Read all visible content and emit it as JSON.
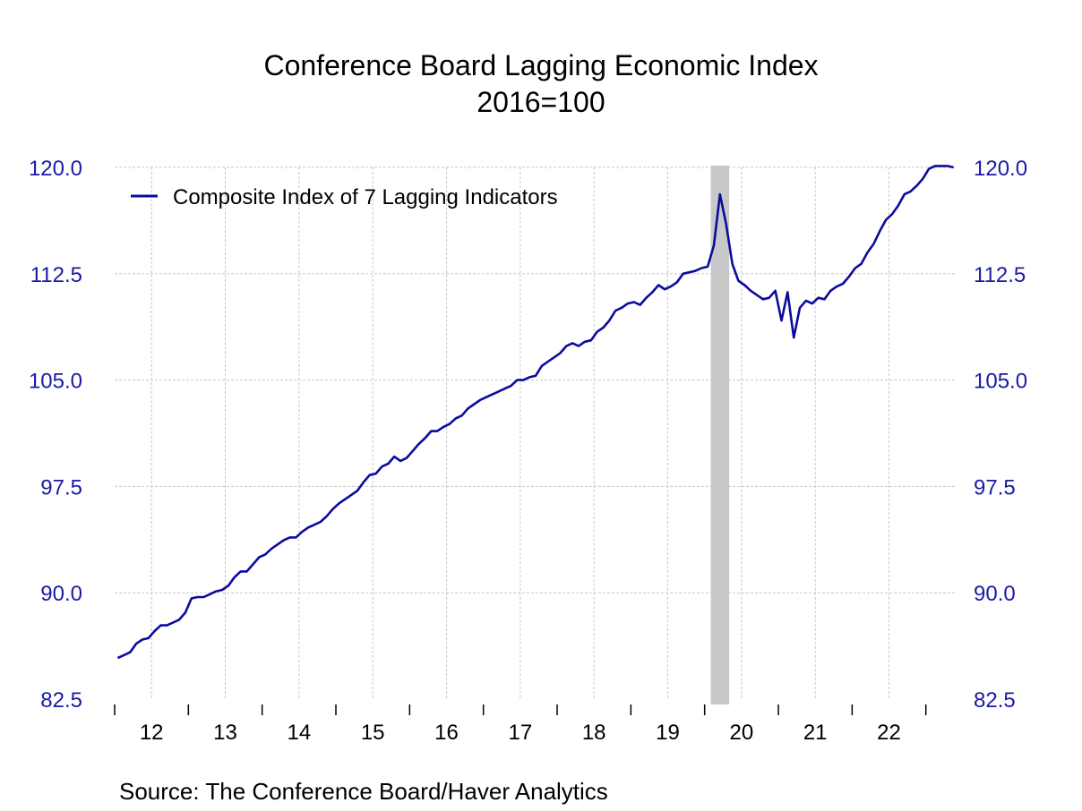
{
  "chart_data": {
    "type": "line",
    "title": "Conference Board Lagging Economic Index",
    "subtitle": "2016=100",
    "source": "Source:  The Conference Board/Haver Analytics",
    "colors": {
      "series": "#0b0b9e",
      "axis_labels": "#1a1aa6",
      "recession": "#c8c8c8",
      "grid": "#c8c8c8"
    },
    "grid": true,
    "legend_position": "top-left",
    "y_axis_left": true,
    "y_axis_right": true,
    "ylim": [
      82.5,
      120.0
    ],
    "y_ticks": [
      82.5,
      90.0,
      97.5,
      105.0,
      112.5,
      120.0
    ],
    "y_tick_labels": [
      "82.5",
      "90.0",
      "97.5",
      "105.0",
      "112.5",
      "120.0"
    ],
    "xlim": [
      "2012-01",
      "2023-05"
    ],
    "x_tick_labels": [
      "12",
      "13",
      "14",
      "15",
      "16",
      "17",
      "18",
      "19",
      "20",
      "21",
      "22"
    ],
    "x_tick_years": [
      2012,
      2013,
      2014,
      2015,
      2016,
      2017,
      2018,
      2019,
      2020,
      2021,
      2022
    ],
    "recession_shading": [
      {
        "start": "2020-02",
        "end": "2020-04"
      }
    ],
    "series": [
      {
        "name": "Composite Index of 7 Lagging Indicators",
        "x": [
          "2012-01",
          "2012-02",
          "2012-03",
          "2012-04",
          "2012-05",
          "2012-06",
          "2012-07",
          "2012-08",
          "2012-09",
          "2012-10",
          "2012-11",
          "2012-12",
          "2013-01",
          "2013-02",
          "2013-03",
          "2013-04",
          "2013-05",
          "2013-06",
          "2013-07",
          "2013-08",
          "2013-09",
          "2013-10",
          "2013-11",
          "2013-12",
          "2014-01",
          "2014-02",
          "2014-03",
          "2014-04",
          "2014-05",
          "2014-06",
          "2014-07",
          "2014-08",
          "2014-09",
          "2014-10",
          "2014-11",
          "2014-12",
          "2015-01",
          "2015-02",
          "2015-03",
          "2015-04",
          "2015-05",
          "2015-06",
          "2015-07",
          "2015-08",
          "2015-09",
          "2015-10",
          "2015-11",
          "2015-12",
          "2016-01",
          "2016-02",
          "2016-03",
          "2016-04",
          "2016-05",
          "2016-06",
          "2016-07",
          "2016-08",
          "2016-09",
          "2016-10",
          "2016-11",
          "2016-12",
          "2017-01",
          "2017-02",
          "2017-03",
          "2017-04",
          "2017-05",
          "2017-06",
          "2017-07",
          "2017-08",
          "2017-09",
          "2017-10",
          "2017-11",
          "2017-12",
          "2018-01",
          "2018-02",
          "2018-03",
          "2018-04",
          "2018-05",
          "2018-06",
          "2018-07",
          "2018-08",
          "2018-09",
          "2018-10",
          "2018-11",
          "2018-12",
          "2019-01",
          "2019-02",
          "2019-03",
          "2019-04",
          "2019-05",
          "2019-06",
          "2019-07",
          "2019-08",
          "2019-09",
          "2019-10",
          "2019-11",
          "2019-12",
          "2020-01",
          "2020-02",
          "2020-03",
          "2020-04",
          "2020-05",
          "2020-06",
          "2020-07",
          "2020-08",
          "2020-09",
          "2020-10",
          "2020-11",
          "2020-12",
          "2021-01",
          "2021-02",
          "2021-03",
          "2021-04",
          "2021-05",
          "2021-06",
          "2021-07",
          "2021-08",
          "2021-09",
          "2021-10",
          "2021-11",
          "2021-12",
          "2022-01",
          "2022-02",
          "2022-03",
          "2022-04",
          "2022-05",
          "2022-06",
          "2022-07",
          "2022-08",
          "2022-09",
          "2022-10",
          "2022-11",
          "2022-12",
          "2023-01",
          "2023-02",
          "2023-03",
          "2023-04",
          "2023-05"
        ],
        "values": [
          85.4,
          85.6,
          85.8,
          86.4,
          86.7,
          86.8,
          87.3,
          87.7,
          87.7,
          87.9,
          88.1,
          88.6,
          89.6,
          89.7,
          89.7,
          89.9,
          90.1,
          90.2,
          90.5,
          91.1,
          91.5,
          91.5,
          92.0,
          92.5,
          92.7,
          93.1,
          93.4,
          93.7,
          93.9,
          93.9,
          94.3,
          94.6,
          94.8,
          95.0,
          95.4,
          95.9,
          96.3,
          96.6,
          96.9,
          97.2,
          97.8,
          98.3,
          98.4,
          98.9,
          99.1,
          99.6,
          99.3,
          99.5,
          100.0,
          100.5,
          100.9,
          101.4,
          101.4,
          101.7,
          101.9,
          102.3,
          102.5,
          103.0,
          103.3,
          103.6,
          103.8,
          104.0,
          104.2,
          104.4,
          104.6,
          105.0,
          105.0,
          105.2,
          105.3,
          106.0,
          106.3,
          106.6,
          106.9,
          107.4,
          107.6,
          107.4,
          107.7,
          107.8,
          108.4,
          108.7,
          109.2,
          109.9,
          110.1,
          110.4,
          110.5,
          110.3,
          110.8,
          111.2,
          111.7,
          111.4,
          111.6,
          111.9,
          112.5,
          112.6,
          112.7,
          112.9,
          113.0,
          114.5,
          118.1,
          116.0,
          113.2,
          112.0,
          111.7,
          111.3,
          111.0,
          110.7,
          110.8,
          111.3,
          109.2,
          111.2,
          108.0,
          110.1,
          110.6,
          110.4,
          110.8,
          110.7,
          111.3,
          111.6,
          111.8,
          112.3,
          112.9,
          113.2,
          114.0,
          114.6,
          115.5,
          116.3,
          116.7,
          117.3,
          118.1,
          118.3,
          118.7,
          119.2,
          119.9,
          120.1,
          120.1,
          120.1,
          120.0
        ]
      }
    ]
  }
}
